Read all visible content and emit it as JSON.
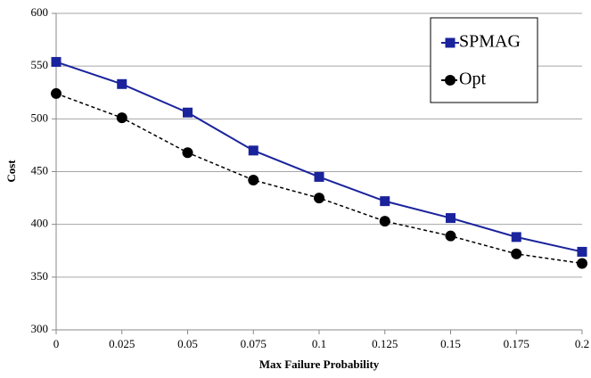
{
  "chart_data": {
    "type": "line",
    "x_label": "Max Failure Probability",
    "y_label": "Cost",
    "x": [
      0,
      0.025,
      0.05,
      0.075,
      0.1,
      0.125,
      0.15,
      0.175,
      0.2
    ],
    "series": [
      {
        "name": "SPMAG",
        "color": "#1a239c",
        "marker": "square",
        "dashed": false,
        "values": [
          554,
          533,
          506,
          470,
          445,
          422,
          406,
          388,
          374
        ]
      },
      {
        "name": "Opt",
        "color": "#000000",
        "marker": "circle",
        "dashed": true,
        "values": [
          524,
          501,
          468,
          442,
          425,
          403,
          389,
          372,
          363
        ]
      }
    ],
    "xlim": [
      0,
      0.2
    ],
    "xticks": [
      0,
      0.025,
      0.05,
      0.075,
      0.1,
      0.125,
      0.15,
      0.175,
      0.2
    ],
    "ylim": [
      300,
      600
    ],
    "yticks": [
      300,
      350,
      400,
      450,
      500,
      550,
      600
    ],
    "grid": true,
    "legend": "upper right"
  }
}
